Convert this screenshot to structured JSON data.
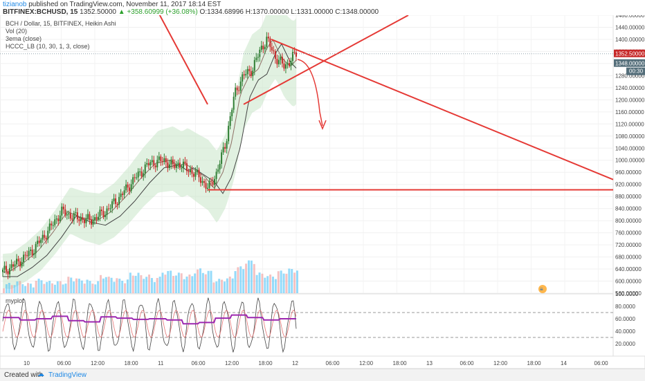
{
  "header": {
    "author": "tizianob",
    "published_text": "published on TradingView.com, November 11, 2017 18:14 EST",
    "symbol_line": "BITFINEX:BCHUSD, 15",
    "price": "1352.50000",
    "change": "+358.60999 (+36.08%)",
    "ohlc": "O:1334.68996 H:1370.00000 L:1331.00000 C:1348.00000"
  },
  "legend": {
    "title": "BCH / Dollar, 15, BITFINEX, Heikin Ashi",
    "items": [
      "Vol (20)",
      "3ema (close)",
      "HCCC_LB (10, 30, 1, 3, close)"
    ],
    "oscillator": "myplot"
  },
  "price_scale": {
    "ticks": [
      "1480.00000",
      "1440.00000",
      "1400.00000",
      "1360.00000",
      "1320.00000",
      "1280.00000",
      "1240.00000",
      "1200.00000",
      "1160.00000",
      "1120.00000",
      "1080.00000",
      "1040.00000",
      "1000.00000",
      "960.00000",
      "920.00000",
      "880.00000",
      "840.00000",
      "800.00000",
      "760.00000",
      "720.00000",
      "680.00000",
      "640.00000",
      "600.00000",
      "560.00000"
    ],
    "last_price": "1352.50000",
    "close_price": "1348.00000",
    "countdown": "00:30"
  },
  "osc_scale": {
    "ticks": [
      "100.0000",
      "80.0000",
      "60.0000",
      "40.0000",
      "20.0000"
    ]
  },
  "time_axis": {
    "ticks": [
      "10",
      "06:00",
      "12:00",
      "18:00",
      "11",
      "06:00",
      "12:00",
      "18:00",
      "12",
      "06:00",
      "12:00",
      "18:00",
      "13",
      "06:00",
      "12:00",
      "18:00",
      "14",
      "06:00"
    ]
  },
  "footer": {
    "created_with": "Created with",
    "brand": "TradingView"
  },
  "colors": {
    "bull": "#2e7d32",
    "bear": "#c62828",
    "drawing": "#e53935",
    "band": "#c8e6c9",
    "volume": "#4fc3f7",
    "volume_alt": "#ef9a9a",
    "osc_main": "#9c27b0",
    "up_text": "#2ca02c",
    "author": "#1e88e5"
  },
  "chart_data": {
    "type": "candlestick",
    "title": "BCH / Dollar, 15, BITFINEX, Heikin Ashi",
    "y_range": [
      560,
      1480
    ],
    "price_path": [
      [
        0,
        630
      ],
      [
        0.05,
        660
      ],
      [
        0.1,
        700
      ],
      [
        0.15,
        760
      ],
      [
        0.2,
        830
      ],
      [
        0.25,
        810
      ],
      [
        0.3,
        800
      ],
      [
        0.35,
        830
      ],
      [
        0.4,
        880
      ],
      [
        0.45,
        940
      ],
      [
        0.5,
        990
      ],
      [
        0.55,
        1000
      ],
      [
        0.58,
        980
      ],
      [
        0.6,
        990
      ],
      [
        0.63,
        970
      ],
      [
        0.67,
        945
      ],
      [
        0.7,
        905
      ],
      [
        0.73,
        960
      ],
      [
        0.76,
        1060
      ],
      [
        0.79,
        1220
      ],
      [
        0.82,
        1280
      ],
      [
        0.85,
        1300
      ],
      [
        0.88,
        1370
      ],
      [
        0.9,
        1400
      ],
      [
        0.93,
        1340
      ],
      [
        0.96,
        1310
      ],
      [
        1.0,
        1352.5
      ]
    ],
    "volume_profile": [
      1,
      2,
      1,
      3,
      2,
      2,
      4,
      3,
      2,
      5,
      4,
      3,
      6,
      5,
      4,
      7,
      6,
      5,
      8,
      7,
      3,
      4,
      9,
      12,
      6,
      5,
      7,
      8
    ],
    "oscillator": {
      "range": [
        0,
        100
      ],
      "guides": [
        70,
        30
      ],
      "levels": [
        62,
        58,
        60,
        64,
        57,
        55,
        63,
        61,
        59,
        60,
        58,
        52,
        54,
        61,
        66,
        62,
        58,
        60
      ]
    },
    "drawings": [
      {
        "type": "line",
        "from": [
          0.07,
          1400
        ],
        "to": [
          1.0,
          936
        ]
      },
      {
        "type": "line",
        "from": [
          0.0,
          1185
        ],
        "to": [
          0.25,
          1520
        ]
      },
      {
        "type": "line",
        "from": [
          0.0,
          902
        ],
        "to": [
          1.0,
          902
        ]
      }
    ]
  }
}
